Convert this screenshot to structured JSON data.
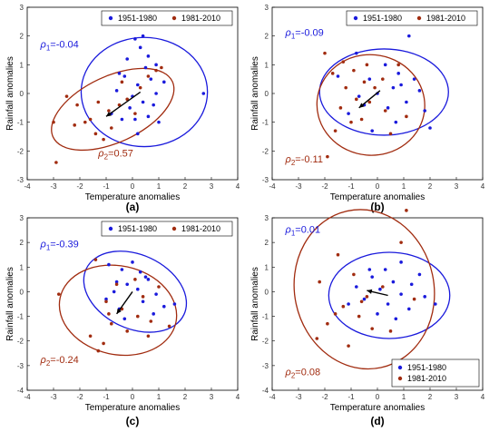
{
  "colors": {
    "p1": "#1a1adc",
    "p2": "#a12c10",
    "axis": "#000000",
    "tick": "#333333"
  },
  "chart_data": [
    {
      "type": "scatter",
      "panel_label": "(a)",
      "xlabel": "Temperature anomalies",
      "ylabel": "Rainfall anomalies",
      "xlim": [
        -4,
        4
      ],
      "ylim": [
        -3,
        3
      ],
      "xticks": [
        -4,
        -3,
        -2,
        -1,
        0,
        1,
        2,
        3,
        4
      ],
      "yticks": [
        -3,
        -2,
        -1,
        0,
        1,
        2,
        3
      ],
      "xtick_labels": [
        "-4",
        "-3",
        "-2",
        "-1",
        "0",
        "1",
        "2",
        "3",
        "4"
      ],
      "ytick_labels": [
        "-3",
        "-2",
        "-1",
        "0",
        "1",
        "2",
        "3"
      ],
      "legend_position": "top-right",
      "legend": [
        "1951-1980",
        "1981-2010"
      ],
      "annotations": [
        {
          "text": "ρ1=-0.04",
          "x": -3.5,
          "y": 1.6,
          "series": 0
        },
        {
          "text": "ρ2=0.57",
          "x": -1.3,
          "y": -2.2,
          "series": 1
        }
      ],
      "series": [
        {
          "name": "1951-1980",
          "points": [
            [
              0.4,
              2.0
            ],
            [
              0.1,
              1.9
            ],
            [
              0.3,
              1.6
            ],
            [
              0.6,
              1.3
            ],
            [
              0.9,
              1.0
            ],
            [
              -0.2,
              1.2
            ],
            [
              0.5,
              0.9
            ],
            [
              0.7,
              0.5
            ],
            [
              1.2,
              0.4
            ],
            [
              -0.3,
              0.6
            ],
            [
              0.2,
              0.3
            ],
            [
              -0.6,
              0.1
            ],
            [
              0.0,
              -0.1
            ],
            [
              0.4,
              -0.3
            ],
            [
              0.8,
              -0.4
            ],
            [
              -0.1,
              -0.5
            ],
            [
              0.6,
              -0.8
            ],
            [
              -0.4,
              -0.9
            ],
            [
              1.0,
              -1.0
            ],
            [
              0.2,
              -1.4
            ],
            [
              -0.8,
              -0.7
            ],
            [
              0.9,
              0.0
            ],
            [
              -0.5,
              0.7
            ],
            [
              2.7,
              0.0
            ],
            [
              0.1,
              -0.9
            ]
          ],
          "ellipse": {
            "cx": 0.45,
            "cy": 0.05,
            "rx": 2.4,
            "ry": 1.9,
            "angle": 0
          }
        },
        {
          "name": "1981-2010",
          "points": [
            [
              -2.5,
              -0.1
            ],
            [
              -2.1,
              -0.4
            ],
            [
              -1.8,
              -1.0
            ],
            [
              -1.4,
              -1.4
            ],
            [
              -1.1,
              -1.6
            ],
            [
              -0.8,
              -1.2
            ],
            [
              -0.5,
              -0.4
            ],
            [
              -0.2,
              -0.2
            ],
            [
              0.3,
              0.2
            ],
            [
              0.6,
              0.6
            ],
            [
              0.9,
              0.8
            ],
            [
              -1.6,
              -0.9
            ],
            [
              -2.2,
              -1.1
            ],
            [
              -0.9,
              -0.6
            ],
            [
              0.1,
              -0.7
            ],
            [
              -3.0,
              -1.0
            ],
            [
              -2.9,
              -2.4
            ],
            [
              -0.4,
              0.4
            ],
            [
              -1.3,
              -0.3
            ],
            [
              1.1,
              0.9
            ]
          ],
          "ellipse": {
            "cx": -0.75,
            "cy": -0.55,
            "rx": 2.5,
            "ry": 1.15,
            "angle": 25
          }
        }
      ],
      "arrow": {
        "from": [
          0.3,
          0.05
        ],
        "to": [
          -1.0,
          -0.8
        ]
      }
    },
    {
      "type": "scatter",
      "panel_label": "(b)",
      "xlabel": "Temperature anomalies",
      "ylabel": "Rainfall anomalies",
      "xlim": [
        -4,
        4
      ],
      "ylim": [
        -3,
        3
      ],
      "xticks": [
        -4,
        -3,
        -2,
        -1,
        0,
        1,
        2,
        3,
        4
      ],
      "yticks": [
        -3,
        -2,
        -1,
        0,
        1,
        2,
        3
      ],
      "xtick_labels": [
        "-4",
        "-3",
        "-2",
        "-1",
        "0",
        "1",
        "2",
        "3",
        "4"
      ],
      "ytick_labels": [
        "-3",
        "-2",
        "-1",
        "0",
        "1",
        "2",
        "3"
      ],
      "legend_position": "top-right",
      "legend": [
        "1951-1980",
        "1981-2010"
      ],
      "annotations": [
        {
          "text": "ρ1=-0.09",
          "x": -3.5,
          "y": 2.0,
          "series": 0
        },
        {
          "text": "ρ2=-0.11",
          "x": -3.5,
          "y": -2.4,
          "series": 1
        }
      ],
      "series": [
        {
          "name": "1951-1980",
          "points": [
            [
              1.2,
              2.0
            ],
            [
              -0.8,
              1.4
            ],
            [
              0.3,
              1.0
            ],
            [
              0.8,
              0.7
            ],
            [
              1.4,
              0.5
            ],
            [
              -0.3,
              0.5
            ],
            [
              0.6,
              0.2
            ],
            [
              1.6,
              0.1
            ],
            [
              -0.7,
              -0.1
            ],
            [
              0.0,
              0.0
            ],
            [
              1.1,
              -0.3
            ],
            [
              -0.5,
              -0.4
            ],
            [
              0.4,
              -0.5
            ],
            [
              1.8,
              -0.6
            ],
            [
              -1.1,
              -0.7
            ],
            [
              0.7,
              -1.0
            ],
            [
              2.0,
              -1.2
            ],
            [
              -0.2,
              -1.3
            ],
            [
              0.9,
              0.3
            ],
            [
              -1.5,
              0.6
            ]
          ],
          "ellipse": {
            "cx": 0.25,
            "cy": 0.05,
            "rx": 2.45,
            "ry": 1.5,
            "angle": 0
          }
        },
        {
          "name": "1981-2010",
          "points": [
            [
              -2.0,
              1.4
            ],
            [
              -1.3,
              1.1
            ],
            [
              -0.9,
              0.8
            ],
            [
              -0.5,
              0.4
            ],
            [
              -0.1,
              0.2
            ],
            [
              -0.8,
              -0.2
            ],
            [
              -1.4,
              -0.5
            ],
            [
              -0.3,
              -0.3
            ],
            [
              0.3,
              -0.6
            ],
            [
              -1.0,
              -1.0
            ],
            [
              -1.6,
              -1.3
            ],
            [
              -1.9,
              -2.2
            ],
            [
              0.5,
              -1.4
            ],
            [
              -0.6,
              -0.9
            ],
            [
              1.1,
              -0.8
            ],
            [
              -1.2,
              0.2
            ],
            [
              -0.4,
              1.0
            ],
            [
              0.8,
              1.0
            ],
            [
              -1.7,
              0.7
            ],
            [
              0.2,
              0.5
            ]
          ],
          "ellipse": {
            "cx": -0.25,
            "cy": -0.4,
            "rx": 2.05,
            "ry": 1.75,
            "angle": -5
          }
        }
      ],
      "arrow": {
        "from": [
          0.1,
          0.1
        ],
        "to": [
          -0.7,
          -0.5
        ]
      }
    },
    {
      "type": "scatter",
      "panel_label": "(c)",
      "xlabel": "Temperature anomalies",
      "ylabel": "Rainfall anomalies",
      "xlim": [
        -4,
        4
      ],
      "ylim": [
        -4,
        3
      ],
      "xticks": [
        -4,
        -3,
        -2,
        -1,
        0,
        1,
        2,
        3,
        4
      ],
      "yticks": [
        -4,
        -3,
        -2,
        -1,
        0,
        1,
        2,
        3
      ],
      "xtick_labels": [
        "-4",
        "-3",
        "-2",
        "-1",
        "0",
        "1",
        "2",
        "3",
        "4"
      ],
      "ytick_labels": [
        "-4",
        "-3",
        "-2",
        "-1",
        "0",
        "1",
        "2",
        "3"
      ],
      "legend_position": "top-right",
      "legend": [
        "1951-1980",
        "1981-2010"
      ],
      "annotations": [
        {
          "text": "ρ1=-0.39",
          "x": -3.5,
          "y": 1.8,
          "series": 0
        },
        {
          "text": "ρ2=-0.24",
          "x": -3.5,
          "y": -2.9,
          "series": 1
        }
      ],
      "series": [
        {
          "name": "1951-1980",
          "points": [
            [
              -0.9,
              1.1
            ],
            [
              -0.4,
              0.9
            ],
            [
              0.0,
              1.2
            ],
            [
              0.3,
              0.8
            ],
            [
              0.6,
              0.5
            ],
            [
              -0.6,
              0.4
            ],
            [
              -0.2,
              0.3
            ],
            [
              0.2,
              0.1
            ],
            [
              0.9,
              -0.1
            ],
            [
              -1.0,
              -0.3
            ],
            [
              0.4,
              -0.4
            ],
            [
              1.2,
              -0.6
            ],
            [
              -0.5,
              -0.7
            ],
            [
              0.8,
              -0.9
            ],
            [
              1.6,
              -0.5
            ],
            [
              -0.3,
              -1.1
            ],
            [
              0.5,
              0.6
            ],
            [
              -0.7,
              0.0
            ]
          ],
          "ellipse": {
            "cx": 0.1,
            "cy": 0.0,
            "rx": 2.05,
            "ry": 1.5,
            "angle": -25
          }
        },
        {
          "name": "1981-2010",
          "points": [
            [
              -1.4,
              1.3
            ],
            [
              -2.8,
              -0.1
            ],
            [
              -1.0,
              -0.4
            ],
            [
              -0.4,
              -0.7
            ],
            [
              0.2,
              -1.0
            ],
            [
              -0.8,
              -1.3
            ],
            [
              -1.6,
              -1.8
            ],
            [
              -0.2,
              -1.6
            ],
            [
              0.7,
              -1.2
            ],
            [
              -1.1,
              -2.1
            ],
            [
              0.4,
              -0.2
            ],
            [
              -0.6,
              0.3
            ],
            [
              1.0,
              0.2
            ],
            [
              -1.3,
              -2.4
            ],
            [
              0.6,
              -1.8
            ],
            [
              -0.9,
              -0.9
            ],
            [
              0.1,
              0.5
            ],
            [
              1.4,
              -1.4
            ]
          ],
          "ellipse": {
            "cx": -0.55,
            "cy": -0.75,
            "rx": 2.25,
            "ry": 1.8,
            "angle": -12
          }
        }
      ],
      "arrow": {
        "from": [
          0.0,
          0.0
        ],
        "to": [
          -0.6,
          -0.9
        ]
      }
    },
    {
      "type": "scatter",
      "panel_label": "(d)",
      "xlabel": "Temperature anomalies",
      "ylabel": "Rainfall anomalies",
      "xlim": [
        -4,
        4
      ],
      "ylim": [
        -4,
        3
      ],
      "xticks": [
        -4,
        -3,
        -2,
        -1,
        0,
        1,
        2,
        3,
        4
      ],
      "yticks": [
        -4,
        -3,
        -2,
        -1,
        0,
        1,
        2,
        3
      ],
      "xtick_labels": [
        "-4",
        "-3",
        "-2",
        "-1",
        "0",
        "1",
        "2",
        "3",
        "4"
      ],
      "ytick_labels": [
        "-4",
        "-3",
        "-2",
        "-1",
        "0",
        "1",
        "2",
        "3"
      ],
      "legend_position": "bottom-right",
      "legend": [
        "1951-1980",
        "1981-2010"
      ],
      "annotations": [
        {
          "text": "ρ1=0.01",
          "x": -3.5,
          "y": 2.4,
          "series": 0
        },
        {
          "text": "ρ2=0.08",
          "x": -3.5,
          "y": -3.4,
          "series": 1
        }
      ],
      "series": [
        {
          "name": "1951-1980",
          "points": [
            [
              0.9,
              1.2
            ],
            [
              0.3,
              0.9
            ],
            [
              -0.2,
              0.6
            ],
            [
              0.6,
              0.4
            ],
            [
              1.3,
              0.3
            ],
            [
              -0.8,
              0.2
            ],
            [
              0.1,
              0.1
            ],
            [
              0.9,
              -0.1
            ],
            [
              1.8,
              -0.2
            ],
            [
              -0.5,
              -0.3
            ],
            [
              0.4,
              -0.5
            ],
            [
              1.2,
              -0.7
            ],
            [
              -1.1,
              -0.5
            ],
            [
              0.0,
              -0.9
            ],
            [
              0.7,
              -1.1
            ],
            [
              2.2,
              -0.5
            ],
            [
              -0.3,
              0.9
            ],
            [
              1.6,
              0.7
            ]
          ],
          "ellipse": {
            "cx": 0.45,
            "cy": -0.15,
            "rx": 2.3,
            "ry": 1.75,
            "angle": 0
          }
        },
        {
          "name": "1981-2010",
          "points": [
            [
              -1.5,
              1.5
            ],
            [
              -2.2,
              0.4
            ],
            [
              -0.9,
              0.7
            ],
            [
              -0.4,
              -0.2
            ],
            [
              -1.3,
              -0.6
            ],
            [
              -0.7,
              -1.0
            ],
            [
              -1.9,
              -1.3
            ],
            [
              -0.2,
              -1.5
            ],
            [
              0.5,
              -1.6
            ],
            [
              -1.1,
              -2.2
            ],
            [
              -2.3,
              -1.9
            ],
            [
              0.9,
              2.0
            ],
            [
              1.1,
              3.3
            ],
            [
              0.2,
              0.2
            ],
            [
              -0.6,
              -0.4
            ],
            [
              1.4,
              -0.3
            ],
            [
              -1.6,
              -0.9
            ]
          ],
          "ellipse": {
            "cx": -0.5,
            "cy": 0.1,
            "rx": 2.65,
            "ry": 3.25,
            "angle": 12
          }
        }
      ],
      "arrow": {
        "from": [
          0.4,
          -0.15
        ],
        "to": [
          -0.4,
          0.05
        ]
      }
    }
  ]
}
